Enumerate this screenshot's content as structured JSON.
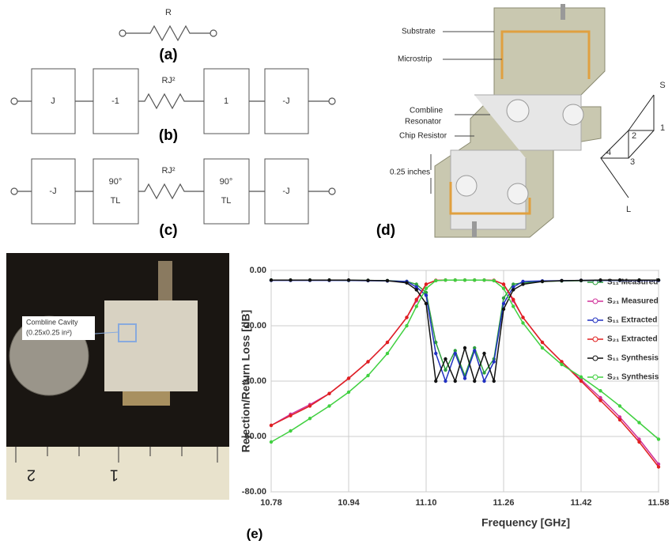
{
  "panel_a": {
    "resistor": "R",
    "caption": "(a)"
  },
  "panel_b": {
    "blocks": [
      "J",
      "-1",
      "1",
      "-J"
    ],
    "resistor": "RJ²",
    "caption": "(b)"
  },
  "panel_c": {
    "blocks": [
      [
        "-J"
      ],
      [
        "90°",
        "TL"
      ],
      [
        "90°",
        "TL"
      ],
      [
        "-J"
      ]
    ],
    "resistor": "RJ²",
    "caption": "(c)"
  },
  "panel_d": {
    "labels": [
      "Substrate",
      "Microstrip",
      "Combline",
      "Resonator",
      "Chip Resistor",
      "0.25 inches"
    ],
    "ports": [
      "S",
      "1",
      "2",
      "3",
      "4",
      "L"
    ],
    "caption": "(d)"
  },
  "photo": {
    "callout": [
      "Combline Cavity",
      "(0.25x0.25 in²)"
    ],
    "ruler": [
      "2",
      "1"
    ]
  },
  "chart_data": {
    "type": "line",
    "caption": "(e)",
    "x_label": "Frequency [GHz]",
    "y_label": "Rejection/Return Loss [dB]",
    "x": [
      10.78,
      10.82,
      10.86,
      10.9,
      10.94,
      10.98,
      11.02,
      11.06,
      11.08,
      11.1,
      11.12,
      11.14,
      11.16,
      11.18,
      11.2,
      11.22,
      11.24,
      11.26,
      11.28,
      11.3,
      11.34,
      11.38,
      11.42,
      11.46,
      11.5,
      11.54,
      11.58
    ],
    "xlim": [
      10.78,
      11.58
    ],
    "xticks": [
      10.78,
      10.94,
      {
        "value": 11.1,
        "label": "11.10"
      },
      11.26,
      11.42,
      11.58
    ],
    "ylim": [
      -80,
      0
    ],
    "yticks": [
      {
        "value": 0,
        "label": "0.00"
      },
      {
        "value": -20,
        "label": "-20.00"
      },
      {
        "value": -40,
        "label": "-40.00"
      },
      {
        "value": -60,
        "label": "-60.00"
      },
      {
        "value": -80,
        "label": "-80.00"
      }
    ],
    "grid": true,
    "series": [
      {
        "name": "S₁₁ Measured",
        "color": "#2e9e3e",
        "values": [
          -3.5,
          -3.5,
          -3.5,
          -3.5,
          -3.6,
          -3.6,
          -3.7,
          -4,
          -5,
          -8,
          -26,
          -36,
          -29,
          -38,
          -28,
          -37,
          -32,
          -10,
          -5,
          -4.5,
          -4,
          -3.8,
          -3.7,
          -3.6,
          -3.6,
          -3.5,
          -3.5
        ]
      },
      {
        "name": "S₂₁ Measured",
        "color": "#d0309a",
        "values": [
          -56,
          -52,
          -48.5,
          -44.5,
          -39,
          -33,
          -26,
          -17,
          -11,
          -5,
          -3.6,
          -3.5,
          -3.5,
          -3.5,
          -3.5,
          -3.5,
          -3.6,
          -5,
          -11,
          -17,
          -26,
          -33,
          -39.5,
          -46,
          -53,
          -61,
          -70
        ]
      },
      {
        "name": "S₁₁ Extracted",
        "color": "#2030c0",
        "values": [
          -3.6,
          -3.6,
          -3.6,
          -3.6,
          -3.6,
          -3.7,
          -3.8,
          -4,
          -6,
          -9,
          -30,
          -40,
          -30,
          -39,
          -29,
          -40,
          -33,
          -12,
          -6,
          -4,
          -3.8,
          -3.7,
          -3.6,
          -3.6,
          -3.6,
          -3.6,
          -3.6
        ]
      },
      {
        "name": "S₂₁ Extracted",
        "color": "#e02020",
        "values": [
          -56,
          -52.5,
          -49,
          -44.5,
          -39,
          -33,
          -26,
          -17,
          -10.5,
          -5,
          -3.6,
          -3.5,
          -3.5,
          -3.5,
          -3.5,
          -3.5,
          -3.6,
          -5,
          -10.5,
          -17,
          -26,
          -33,
          -40,
          -47,
          -54,
          -62,
          -71
        ]
      },
      {
        "name": "S₁₁ Synthesis",
        "color": "#111111",
        "values": [
          -3.5,
          -3.5,
          -3.5,
          -3.5,
          -3.5,
          -3.6,
          -3.7,
          -4.5,
          -7,
          -12,
          -40,
          -32,
          -40,
          -28,
          -40,
          -30,
          -40,
          -14,
          -7,
          -5,
          -4,
          -3.7,
          -3.6,
          -3.5,
          -3.5,
          -3.5,
          -3.5
        ]
      },
      {
        "name": "S₂₁ Synthesis",
        "color": "#40d040",
        "values": [
          -62,
          -58,
          -53.5,
          -49,
          -44,
          -38,
          -30,
          -20,
          -13,
          -6.5,
          -3.7,
          -3.5,
          -3.5,
          -3.5,
          -3.5,
          -3.5,
          -3.7,
          -6.5,
          -13,
          -19,
          -28,
          -34,
          -38.5,
          -43.5,
          -49,
          -55,
          -61
        ]
      }
    ]
  }
}
